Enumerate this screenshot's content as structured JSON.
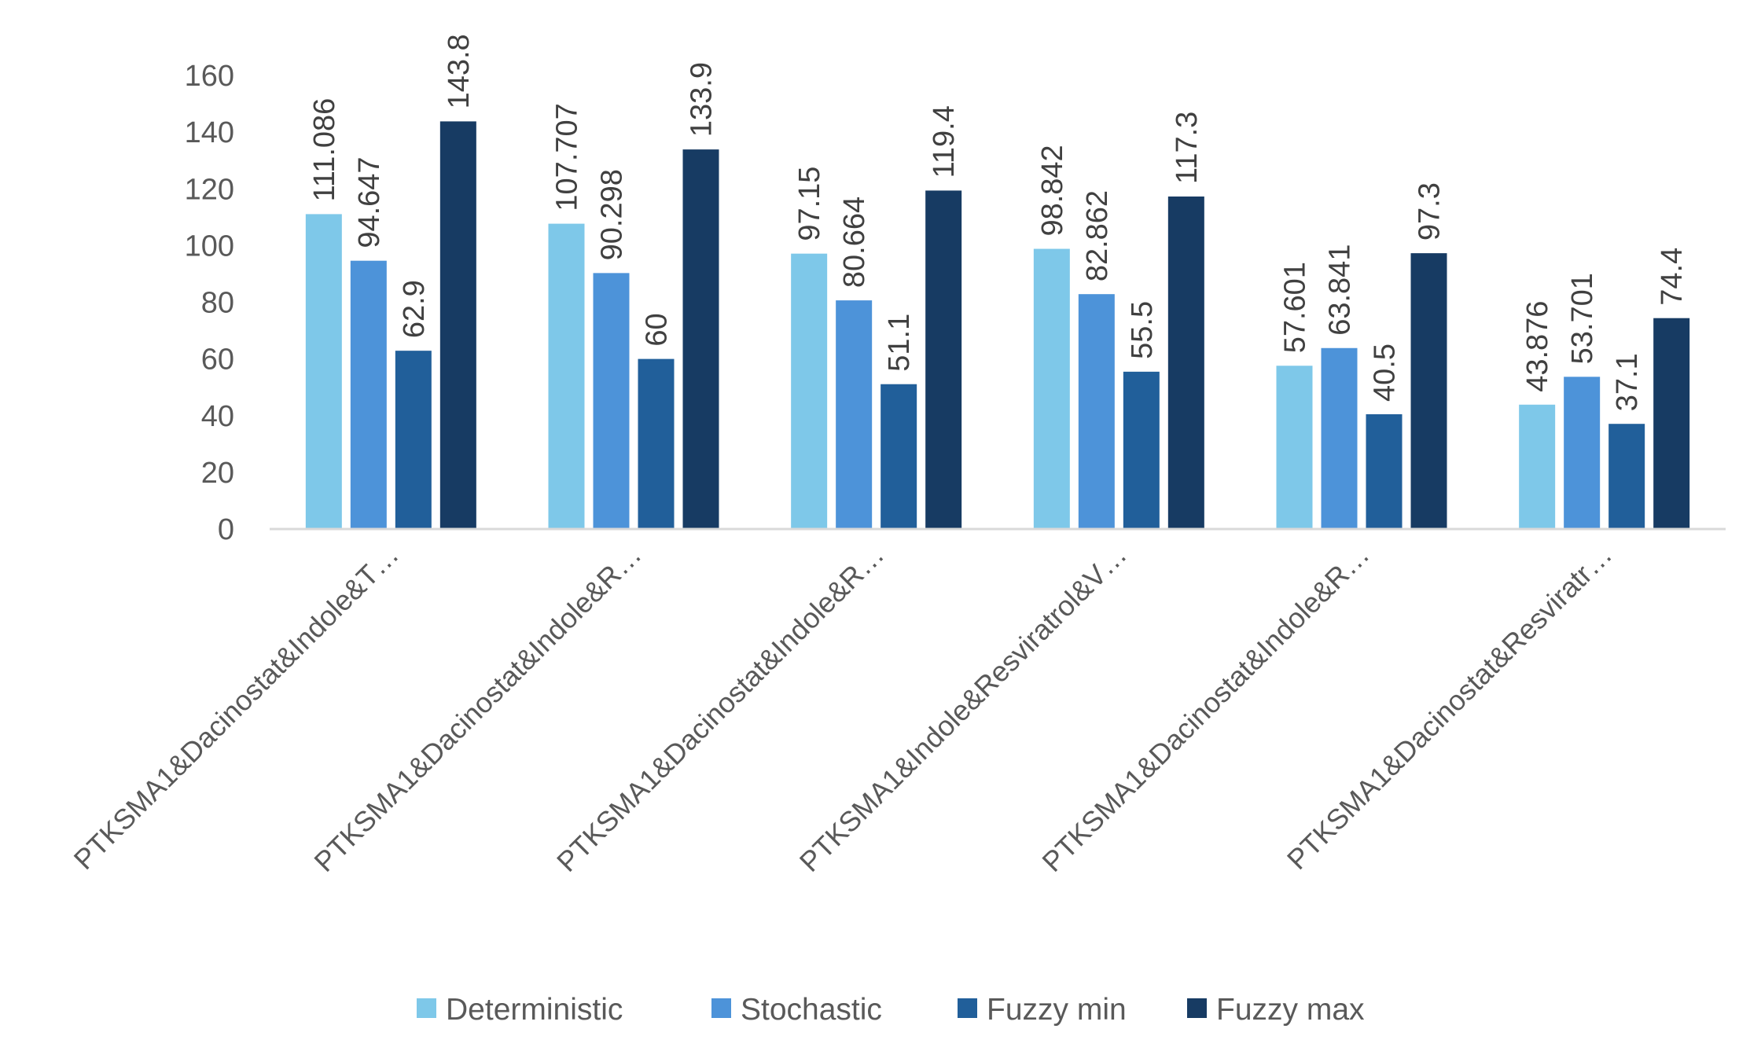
{
  "chart_data": {
    "type": "bar",
    "categories": [
      "PTKSMA1&Dacinostat&Indole&T…",
      "PTKSMA1&Dacinostat&Indole&R…",
      "PTKSMA1&Dacinostat&Indole&R…",
      "PTKSMA1&Indole&Resviratrol&V…",
      "PTKSMA1&Dacinostat&Indole&R…",
      "PTKSMA1&Dacinostat&Resviratr…"
    ],
    "series": [
      {
        "name": "Deterministic",
        "color": "#7EC8E9",
        "values": [
          111.086,
          107.707,
          97.15,
          98.842,
          57.601,
          43.876
        ],
        "labels": [
          "111.086",
          "107.707",
          "97.15",
          "98.842",
          "57.601",
          "43.876"
        ]
      },
      {
        "name": "Stochastic",
        "color": "#4D93D9",
        "values": [
          94.647,
          90.298,
          80.664,
          82.862,
          63.841,
          53.701
        ],
        "labels": [
          "94.647",
          "90.298",
          "80.664",
          "82.862",
          "63.841",
          "53.701"
        ]
      },
      {
        "name": "Fuzzy min",
        "color": "#215F9A",
        "values": [
          62.9,
          60,
          51.1,
          55.5,
          40.5,
          37.1
        ],
        "labels": [
          "62.9",
          "60",
          "51.1",
          "55.5",
          "40.5",
          "37.1"
        ]
      },
      {
        "name": "Fuzzy max",
        "color": "#173B63",
        "values": [
          143.8,
          133.9,
          119.4,
          117.3,
          97.3,
          74.4
        ],
        "labels": [
          "143.8",
          "133.9",
          "119.4",
          "117.3",
          "97.3",
          "74.4"
        ]
      }
    ],
    "yticks": [
      "0",
      "20",
      "40",
      "60",
      "80",
      "100",
      "120",
      "140",
      "160"
    ],
    "ylim": [
      0,
      160
    ],
    "grid": false,
    "legend_position": "bottom",
    "title": "",
    "xlabel": "",
    "ylabel": ""
  }
}
